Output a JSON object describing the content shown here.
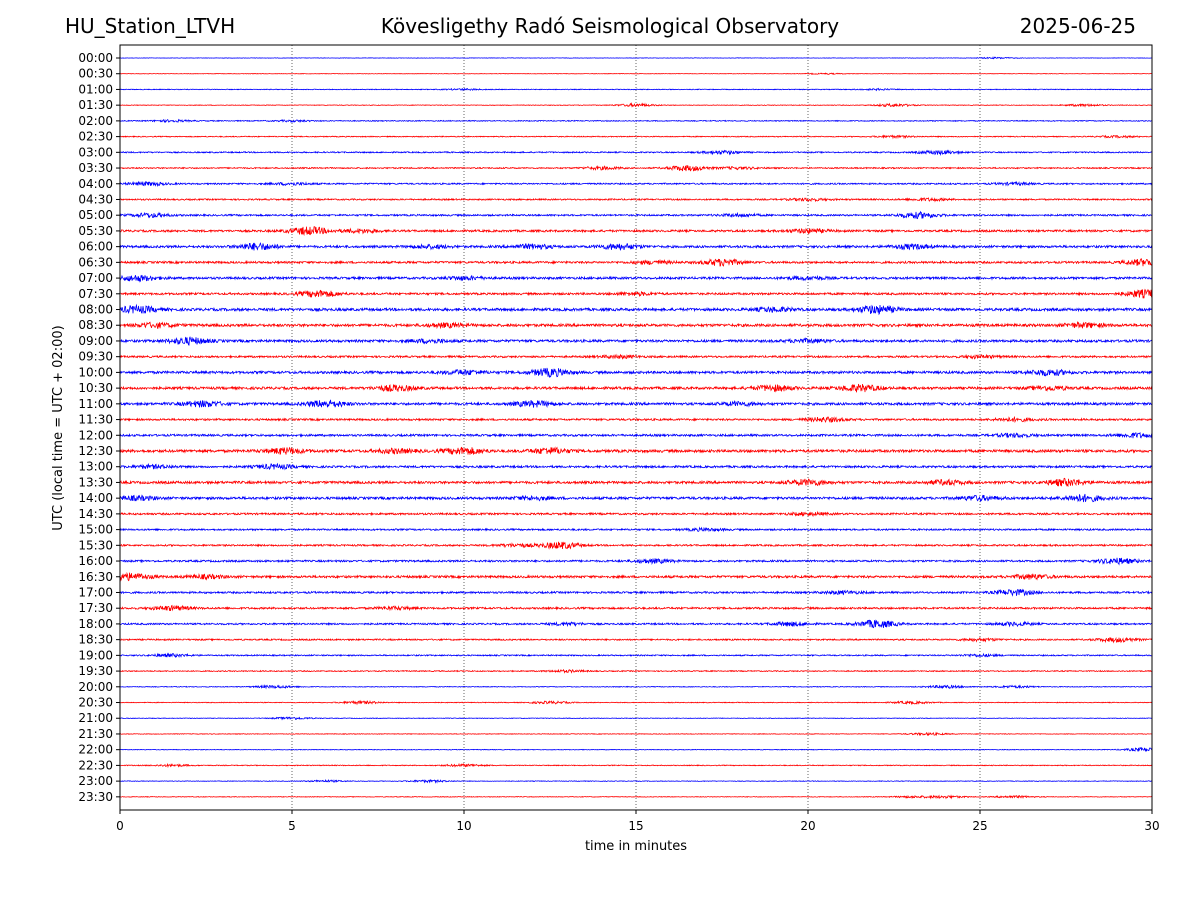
{
  "header": {
    "station": "HU_Station_LTVH",
    "title": "Kövesligethy Radó Seismological Observatory",
    "date": "2025-06-25"
  },
  "chart_data": {
    "type": "line",
    "title": "Kövesligethy Radó Seismological Observatory",
    "xlabel": "time in minutes",
    "ylabel": "UTC (local time = UTC + 02:00)",
    "xlim": [
      0,
      30
    ],
    "x_ticks": [
      0,
      5,
      10,
      15,
      20,
      25,
      30
    ],
    "x_tick_labels": [
      "0",
      "5",
      "10",
      "15",
      "20",
      "25",
      "30"
    ],
    "vertical_grid": "dotted at every 5 minutes",
    "row_colors": [
      "#0000ff",
      "#ff0000"
    ],
    "rows": [
      "00:00",
      "00:30",
      "01:00",
      "01:30",
      "02:00",
      "02:30",
      "03:00",
      "03:30",
      "04:00",
      "04:30",
      "05:00",
      "05:30",
      "06:00",
      "06:30",
      "07:00",
      "07:30",
      "08:00",
      "08:30",
      "09:00",
      "09:30",
      "10:00",
      "10:30",
      "11:00",
      "11:30",
      "12:00",
      "12:30",
      "13:00",
      "13:30",
      "14:00",
      "14:30",
      "15:00",
      "15:30",
      "16:00",
      "16:30",
      "17:00",
      "17:30",
      "18:00",
      "18:30",
      "19:00",
      "19:30",
      "20:00",
      "20:30",
      "21:00",
      "21:30",
      "22:00",
      "22:30",
      "23:00",
      "23:30"
    ],
    "trace_activity": [
      {
        "row": "00:00",
        "base": 0.2,
        "bursts": [
          [
            25.5,
            0.6
          ]
        ]
      },
      {
        "row": "00:30",
        "base": 0.2,
        "bursts": [
          [
            20.5,
            0.5
          ]
        ]
      },
      {
        "row": "01:00",
        "base": 0.35,
        "bursts": [
          [
            10,
            0.6
          ],
          [
            22,
            0.6
          ]
        ]
      },
      {
        "row": "01:30",
        "base": 0.3,
        "bursts": [
          [
            15,
            1.3
          ],
          [
            22.5,
            1.3
          ],
          [
            28,
            1.0
          ]
        ]
      },
      {
        "row": "02:00",
        "base": 0.45,
        "bursts": [
          [
            1.5,
            0.9
          ],
          [
            5,
            0.7
          ]
        ]
      },
      {
        "row": "02:30",
        "base": 0.45,
        "bursts": [
          [
            22.5,
            0.9
          ],
          [
            29,
            0.8
          ]
        ]
      },
      {
        "row": "03:00",
        "base": 0.6,
        "bursts": [
          [
            17.5,
            1.5
          ],
          [
            23.8,
            1.8
          ]
        ]
      },
      {
        "row": "03:30",
        "base": 0.6,
        "bursts": [
          [
            16.5,
            2.6
          ],
          [
            14,
            1.3
          ],
          [
            18,
            1.0
          ]
        ]
      },
      {
        "row": "04:00",
        "base": 0.7,
        "bursts": [
          [
            0.8,
            1.5
          ],
          [
            5,
            1.1
          ],
          [
            26,
            1.0
          ]
        ]
      },
      {
        "row": "04:30",
        "base": 0.7,
        "bursts": [
          [
            20,
            1.1
          ],
          [
            23.5,
            1.1
          ]
        ]
      },
      {
        "row": "05:00",
        "base": 0.8,
        "bursts": [
          [
            0.9,
            1.8
          ],
          [
            23.2,
            2.8
          ],
          [
            18,
            1.2
          ]
        ]
      },
      {
        "row": "05:30",
        "base": 1.0,
        "bursts": [
          [
            5.5,
            3.6
          ],
          [
            7,
            1.6
          ],
          [
            20,
            1.8
          ]
        ]
      },
      {
        "row": "06:00",
        "base": 1.1,
        "bursts": [
          [
            4,
            3.1
          ],
          [
            9,
            1.5
          ],
          [
            12,
            2.0
          ],
          [
            14.5,
            2.6
          ],
          [
            23,
            2.0
          ]
        ]
      },
      {
        "row": "06:30",
        "base": 1.0,
        "bursts": [
          [
            17.5,
            3.0
          ],
          [
            15.5,
            1.5
          ],
          [
            29.8,
            3.0
          ]
        ]
      },
      {
        "row": "07:00",
        "base": 1.1,
        "bursts": [
          [
            0.5,
            2.6
          ],
          [
            10,
            1.4
          ],
          [
            20,
            1.3
          ]
        ]
      },
      {
        "row": "07:30",
        "base": 1.0,
        "bursts": [
          [
            5.8,
            3.1
          ],
          [
            29.8,
            3.6
          ],
          [
            15,
            1.3
          ]
        ]
      },
      {
        "row": "08:00",
        "base": 1.3,
        "bursts": [
          [
            0.5,
            3.1
          ],
          [
            22,
            3.6
          ],
          [
            19,
            1.8
          ]
        ]
      },
      {
        "row": "08:30",
        "base": 1.3,
        "bursts": [
          [
            1,
            2.0
          ],
          [
            9.5,
            1.6
          ],
          [
            28,
            2.0
          ]
        ]
      },
      {
        "row": "09:00",
        "base": 1.2,
        "bursts": [
          [
            2,
            3.1
          ],
          [
            9,
            1.5
          ],
          [
            20,
            1.5
          ]
        ]
      },
      {
        "row": "09:30",
        "base": 0.9,
        "bursts": [
          [
            14.5,
            1.3
          ],
          [
            25,
            1.2
          ]
        ]
      },
      {
        "row": "10:00",
        "base": 1.2,
        "bursts": [
          [
            12.5,
            3.6
          ],
          [
            10,
            2.0
          ],
          [
            27,
            2.6
          ]
        ]
      },
      {
        "row": "10:30",
        "base": 1.2,
        "bursts": [
          [
            8,
            2.6
          ],
          [
            19,
            2.6
          ],
          [
            21.5,
            3.1
          ],
          [
            27,
            1.8
          ]
        ]
      },
      {
        "row": "11:00",
        "base": 1.2,
        "bursts": [
          [
            2.4,
            2.6
          ],
          [
            6,
            3.1
          ],
          [
            12,
            2.6
          ],
          [
            18,
            1.5
          ]
        ]
      },
      {
        "row": "11:30",
        "base": 0.9,
        "bursts": [
          [
            20.5,
            2.0
          ],
          [
            26,
            1.5
          ]
        ]
      },
      {
        "row": "12:00",
        "base": 1.0,
        "bursts": [
          [
            26,
            1.5
          ],
          [
            29.5,
            2.0
          ]
        ]
      },
      {
        "row": "12:30",
        "base": 1.3,
        "bursts": [
          [
            4.8,
            2.6
          ],
          [
            10,
            3.1
          ],
          [
            12.5,
            2.6
          ],
          [
            8,
            1.8
          ]
        ]
      },
      {
        "row": "13:00",
        "base": 1.0,
        "bursts": [
          [
            1,
            1.5
          ],
          [
            4.5,
            2.0
          ]
        ]
      },
      {
        "row": "13:30",
        "base": 1.2,
        "bursts": [
          [
            20,
            2.6
          ],
          [
            24,
            2.0
          ],
          [
            27.5,
            3.1
          ]
        ]
      },
      {
        "row": "14:00",
        "base": 1.2,
        "bursts": [
          [
            0.5,
            1.8
          ],
          [
            28,
            3.1
          ],
          [
            25,
            2.0
          ],
          [
            12,
            1.5
          ]
        ]
      },
      {
        "row": "14:30",
        "base": 0.9,
        "bursts": [
          [
            20,
            1.3
          ]
        ]
      },
      {
        "row": "15:00",
        "base": 0.8,
        "bursts": [
          [
            17,
            1.1
          ]
        ]
      },
      {
        "row": "15:30",
        "base": 0.8,
        "bursts": [
          [
            12.8,
            3.1
          ],
          [
            11.5,
            1.3
          ]
        ]
      },
      {
        "row": "16:00",
        "base": 0.9,
        "bursts": [
          [
            15.5,
            1.8
          ],
          [
            29,
            2.6
          ]
        ]
      },
      {
        "row": "16:30",
        "base": 1.1,
        "bursts": [
          [
            0.3,
            3.1
          ],
          [
            26.5,
            2.0
          ],
          [
            2.5,
            1.6
          ]
        ]
      },
      {
        "row": "17:00",
        "base": 0.9,
        "bursts": [
          [
            26,
            2.6
          ],
          [
            21,
            1.3
          ]
        ]
      },
      {
        "row": "17:30",
        "base": 0.9,
        "bursts": [
          [
            1.5,
            2.0
          ],
          [
            8,
            1.2
          ]
        ]
      },
      {
        "row": "18:00",
        "base": 0.8,
        "bursts": [
          [
            22,
            3.6
          ],
          [
            19.5,
            1.8
          ],
          [
            26,
            1.5
          ],
          [
            13,
            1.2
          ]
        ]
      },
      {
        "row": "18:30",
        "base": 0.7,
        "bursts": [
          [
            29,
            2.0
          ],
          [
            25,
            1.2
          ]
        ]
      },
      {
        "row": "19:00",
        "base": 0.6,
        "bursts": [
          [
            1.5,
            1.3
          ],
          [
            25,
            1.0
          ]
        ]
      },
      {
        "row": "19:30",
        "base": 0.5,
        "bursts": [
          [
            13,
            1.0
          ]
        ]
      },
      {
        "row": "20:00",
        "base": 0.35,
        "bursts": [
          [
            4.5,
            1.3
          ],
          [
            24,
            1.3
          ],
          [
            26,
            1.0
          ]
        ]
      },
      {
        "row": "20:30",
        "base": 0.35,
        "bursts": [
          [
            7,
            1.3
          ],
          [
            12.5,
            1.1
          ],
          [
            23,
            1.1
          ]
        ]
      },
      {
        "row": "21:00",
        "base": 0.3,
        "bursts": [
          [
            5,
            1.0
          ]
        ]
      },
      {
        "row": "21:30",
        "base": 0.3,
        "bursts": [
          [
            23.5,
            1.0
          ]
        ]
      },
      {
        "row": "22:00",
        "base": 0.3,
        "bursts": [
          [
            29.8,
            1.8
          ]
        ]
      },
      {
        "row": "22:30",
        "base": 0.4,
        "bursts": [
          [
            10,
            1.1
          ],
          [
            1.5,
            0.9
          ]
        ]
      },
      {
        "row": "23:00",
        "base": 0.3,
        "bursts": [
          [
            9,
            1.0
          ],
          [
            6,
            0.8
          ]
        ]
      },
      {
        "row": "23:30",
        "base": 0.3,
        "bursts": [
          [
            24,
            1.1
          ],
          [
            26,
            1.0
          ],
          [
            23,
            0.8
          ]
        ]
      }
    ]
  }
}
